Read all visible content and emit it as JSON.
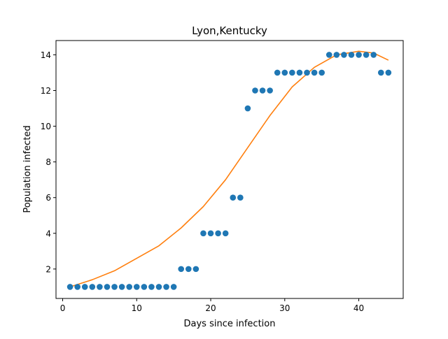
{
  "chart_data": {
    "type": "scatter",
    "title": "Lyon,Kentucky",
    "xlabel": "Days since infection",
    "ylabel": "Population infected",
    "xlim": [
      -0.9,
      46
    ],
    "ylim": [
      0.35,
      14.8
    ],
    "xticks": [
      0,
      10,
      20,
      30,
      40
    ],
    "yticks": [
      2,
      4,
      6,
      8,
      10,
      12,
      14
    ],
    "grid": false,
    "legend": "none",
    "series": [
      {
        "type": "scatter",
        "color": "#1f77b4",
        "x": [
          1,
          2,
          3,
          4,
          5,
          6,
          7,
          8,
          9,
          10,
          11,
          12,
          13,
          14,
          15,
          16,
          17,
          18,
          19,
          20,
          21,
          22,
          23,
          24,
          25,
          26,
          27,
          28,
          29,
          30,
          31,
          32,
          33,
          34,
          35,
          36,
          37,
          38,
          39,
          40,
          41,
          42,
          43,
          44
        ],
        "y": [
          1,
          1,
          1,
          1,
          1,
          1,
          1,
          1,
          1,
          1,
          1,
          1,
          1,
          1,
          1,
          2,
          2,
          2,
          4,
          4,
          4,
          4,
          6,
          6,
          11,
          12,
          12,
          12,
          13,
          13,
          13,
          13,
          13,
          13,
          13,
          14,
          14,
          14,
          14,
          14,
          14,
          14,
          13,
          13
        ]
      },
      {
        "type": "line",
        "color": "#ff7f0e",
        "x": [
          1,
          4,
          7,
          10,
          13,
          16,
          19,
          22,
          25,
          28,
          31,
          34,
          37,
          40,
          42,
          44
        ],
        "y": [
          1.0,
          1.4,
          1.9,
          2.6,
          3.3,
          4.3,
          5.5,
          7.0,
          8.8,
          10.6,
          12.2,
          13.3,
          14.0,
          14.2,
          14.1,
          13.7
        ]
      }
    ]
  }
}
